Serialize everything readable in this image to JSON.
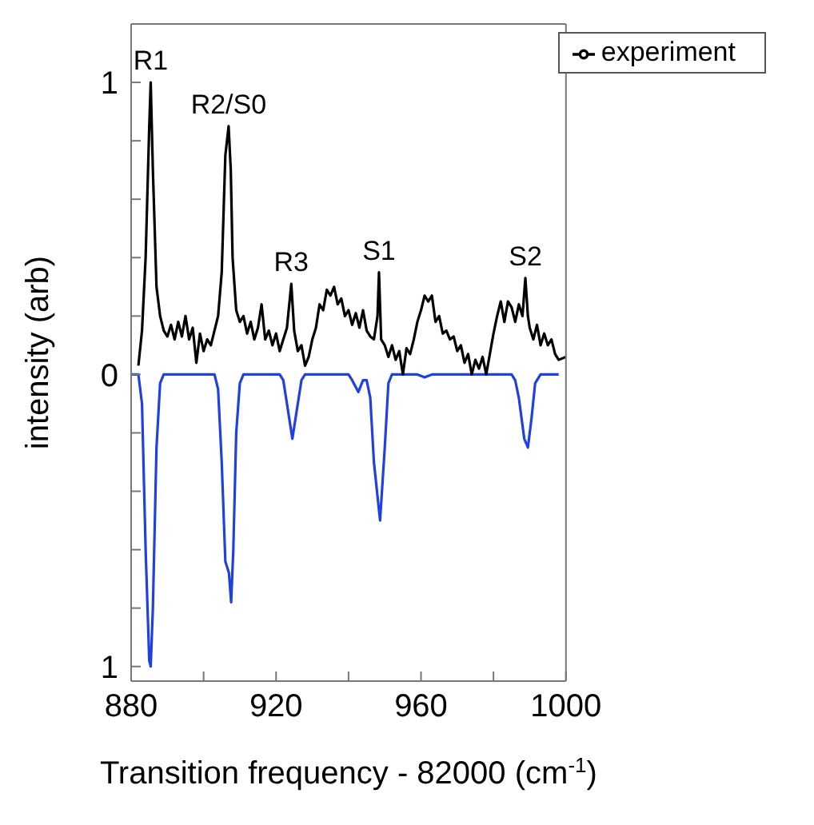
{
  "chart_data": {
    "type": "line",
    "xlabel": "Transition frequency - 82000 (cm$^{-1}$)",
    "ylabel": "intensity (arb)",
    "xlim": [
      880,
      1000
    ],
    "xticks": [
      880,
      {
        "value": 900,
        "label": null
      },
      920,
      {
        "value": 940,
        "label": null
      },
      960,
      {
        "value": 980,
        "label": null
      },
      1000
    ],
    "ylim": [
      -1.05,
      1.2
    ],
    "yticks": [
      {
        "value": -1,
        "label": "1"
      },
      {
        "value": -0.8,
        "label": null
      },
      {
        "value": -0.6,
        "label": null
      },
      {
        "value": -0.4,
        "label": null
      },
      {
        "value": -0.2,
        "label": null
      },
      0,
      {
        "value": 0.2,
        "label": null
      },
      {
        "value": 0.4,
        "label": null
      },
      {
        "value": 0.6,
        "label": null
      },
      {
        "value": 0.8,
        "label": null
      },
      1
    ],
    "legend": "top right",
    "grid": false,
    "marker": "none",
    "line_style": "solid",
    "annotations": [
      {
        "text": "R1",
        "x": 885.4,
        "y": 1.0
      },
      {
        "text": "R2/S0",
        "x": 906.9,
        "y": 0.85
      },
      {
        "text": "R3",
        "x": 924.2,
        "y": 0.31
      },
      {
        "text": "S1",
        "x": 948.4,
        "y": 0.35
      },
      {
        "text": "S2",
        "x": 988.8,
        "y": 0.33
      }
    ],
    "series": [
      {
        "color": "#2040e0",
        "x": [
          880,
          882,
          883,
          884,
          885,
          885.4,
          886,
          887,
          888,
          889,
          903,
          904,
          905,
          906,
          907,
          907.6,
          908.2,
          909,
          910,
          911,
          921,
          922,
          923,
          924.5,
          926,
          927,
          928,
          940,
          941,
          942.7,
          944,
          945,
          946,
          947,
          948.7,
          950,
          951,
          952,
          959,
          961,
          963,
          985,
          986,
          987,
          988.5,
          989.5,
          990.5,
          991.5,
          993,
          998
        ],
        "values": [
          0,
          0,
          -0.1,
          -0.6,
          -0.98,
          -1.0,
          -0.8,
          -0.25,
          -0.03,
          0,
          0,
          -0.05,
          -0.3,
          -0.64,
          -0.68,
          -0.78,
          -0.6,
          -0.2,
          -0.03,
          0,
          0,
          -0.02,
          -0.1,
          -0.22,
          -0.1,
          -0.02,
          0,
          0,
          -0.02,
          -0.06,
          -0.02,
          -0.02,
          -0.08,
          -0.3,
          -0.5,
          -0.25,
          -0.03,
          0,
          0,
          -0.01,
          0,
          0,
          -0.02,
          -0.08,
          -0.22,
          -0.25,
          -0.15,
          -0.03,
          0,
          0
        ]
      },
      {
        "name": "experiment",
        "color": "#000000",
        "x": [
          882,
          883,
          884,
          885,
          885.4,
          886,
          887,
          888,
          889,
          890,
          891,
          892,
          893,
          894,
          895,
          896,
          897,
          898,
          899,
          900,
          901,
          902,
          903,
          904,
          905,
          906,
          906.9,
          907.5,
          908,
          909,
          910,
          911,
          912,
          913,
          914,
          915,
          916,
          917,
          918,
          919,
          920,
          921,
          922,
          923,
          924.2,
          925,
          926,
          927,
          928,
          929,
          930,
          931,
          932,
          933,
          934,
          935,
          936,
          937,
          938,
          939,
          940,
          941,
          942,
          943,
          944,
          945,
          946,
          947,
          948,
          948.4,
          949,
          950,
          951,
          952,
          953,
          954,
          955,
          956,
          957,
          958,
          959,
          960,
          961,
          962,
          963,
          964,
          965,
          966,
          967,
          968,
          969,
          970,
          971,
          972,
          973,
          974,
          975,
          976,
          977,
          978,
          979,
          980,
          981,
          982,
          983,
          984,
          985,
          986,
          987,
          988,
          988.8,
          989.5,
          990,
          991,
          992,
          993,
          994,
          995,
          996,
          997,
          998,
          1000
        ],
        "values": [
          0.03,
          0.15,
          0.4,
          0.85,
          1.0,
          0.7,
          0.3,
          0.2,
          0.15,
          0.13,
          0.17,
          0.12,
          0.18,
          0.13,
          0.2,
          0.12,
          0.16,
          0.04,
          0.14,
          0.08,
          0.12,
          0.1,
          0.15,
          0.2,
          0.35,
          0.75,
          0.85,
          0.7,
          0.4,
          0.22,
          0.18,
          0.2,
          0.14,
          0.18,
          0.12,
          0.16,
          0.24,
          0.12,
          0.15,
          0.1,
          0.14,
          0.08,
          0.12,
          0.16,
          0.31,
          0.15,
          0.08,
          0.1,
          0.03,
          0.06,
          0.12,
          0.16,
          0.24,
          0.22,
          0.29,
          0.27,
          0.3,
          0.24,
          0.26,
          0.2,
          0.22,
          0.17,
          0.21,
          0.16,
          0.22,
          0.15,
          0.13,
          0.12,
          0.2,
          0.35,
          0.12,
          0.1,
          0.06,
          0.1,
          0.05,
          0.08,
          0.0,
          0.09,
          0.07,
          0.12,
          0.18,
          0.22,
          0.27,
          0.25,
          0.27,
          0.18,
          0.2,
          0.14,
          0.15,
          0.12,
          0.13,
          0.08,
          0.1,
          0.04,
          0.07,
          0.0,
          0.05,
          0.02,
          0.06,
          0.0,
          0.07,
          0.14,
          0.2,
          0.25,
          0.18,
          0.25,
          0.23,
          0.18,
          0.24,
          0.2,
          0.33,
          0.2,
          0.16,
          0.12,
          0.17,
          0.1,
          0.14,
          0.1,
          0.12,
          0.07,
          0.05,
          0.06
        ]
      }
    ]
  }
}
